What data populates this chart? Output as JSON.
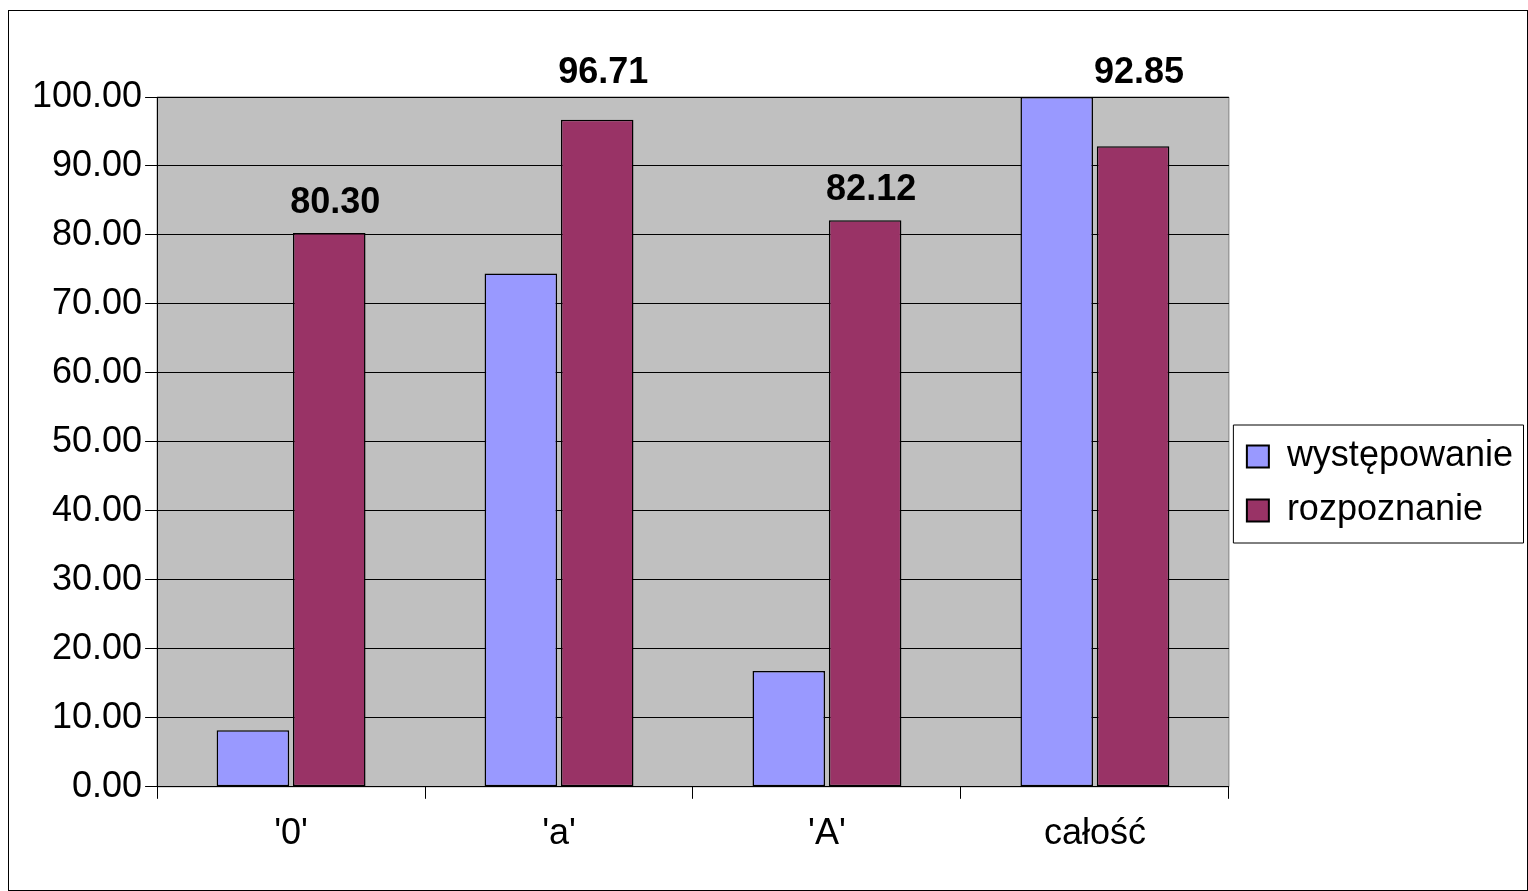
{
  "chart_data": {
    "type": "bar",
    "categories": [
      "'0'",
      "'a'",
      "'A'",
      "całość"
    ],
    "series": [
      {
        "name": "występowanie",
        "color": "#9999ff",
        "values": [
          8.2,
          74.4,
          16.8,
          100
        ]
      },
      {
        "name": "rozpoznanie",
        "color": "#993366",
        "values": [
          80.3,
          96.71,
          82.12,
          92.85
        ],
        "value_labels": [
          "80.30",
          "96.71",
          "82.12",
          "92.85"
        ]
      }
    ],
    "ylim": [
      0,
      100
    ],
    "yticks": [
      {
        "value": 0,
        "label": "0.00"
      },
      {
        "value": 10,
        "label": "10.00"
      },
      {
        "value": 20,
        "label": "20.00"
      },
      {
        "value": 30,
        "label": "30.00"
      },
      {
        "value": 40,
        "label": "40.00"
      },
      {
        "value": 50,
        "label": "50.00"
      },
      {
        "value": 60,
        "label": "60.00"
      },
      {
        "value": 70,
        "label": "70.00"
      },
      {
        "value": 80,
        "label": "80.00"
      },
      {
        "value": 90,
        "label": "90.00"
      },
      {
        "value": 100,
        "label": "100.00"
      }
    ],
    "grid": "y",
    "legend": "right"
  }
}
